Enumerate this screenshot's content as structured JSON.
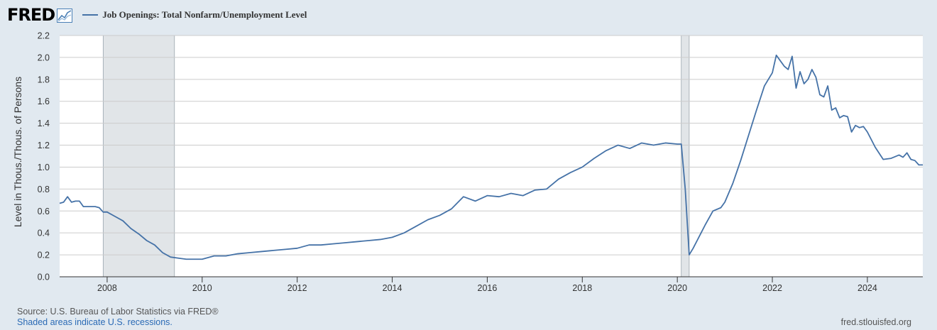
{
  "header": {
    "logo_text": "FRED",
    "series_title": "Job Openings: Total Nonfarm/Unemployment Level"
  },
  "footer": {
    "source": "Source: U.S. Bureau of Labor Statistics via FRED®",
    "recession_note": "Shaded areas indicate U.S. recessions.",
    "site": "fred.stlouisfed.org"
  },
  "chart_data": {
    "type": "line",
    "title": "",
    "xlabel": "",
    "ylabel": "Level in Thous./Thous. of Persons",
    "ylim": [
      0,
      2.2
    ],
    "yticks": [
      "0.0",
      "0.2",
      "0.4",
      "0.6",
      "0.8",
      "1.0",
      "1.2",
      "1.4",
      "1.6",
      "1.8",
      "2.0",
      "2.2"
    ],
    "xlim": [
      "2007-01",
      "2025-03"
    ],
    "xticks": [
      "2008",
      "2010",
      "2012",
      "2014",
      "2016",
      "2018",
      "2020",
      "2022",
      "2024"
    ],
    "grid": true,
    "legend": "top-left",
    "colors": {
      "line": "#4572a7",
      "recession": "#e1e5e8",
      "grid": "#cccccc"
    },
    "recessions": [
      {
        "start": "2007-12",
        "end": "2009-06"
      },
      {
        "start": "2020-02",
        "end": "2020-04"
      }
    ],
    "series": [
      {
        "name": "Job Openings: Total Nonfarm/Unemployment Level",
        "x": [
          "2007-01",
          "2007-02",
          "2007-03",
          "2007-04",
          "2007-05",
          "2007-06",
          "2007-07",
          "2007-08",
          "2007-09",
          "2007-10",
          "2007-11",
          "2007-12",
          "2008-01",
          "2008-03",
          "2008-05",
          "2008-07",
          "2008-09",
          "2008-11",
          "2009-01",
          "2009-03",
          "2009-05",
          "2009-07",
          "2009-09",
          "2009-11",
          "2010-01",
          "2010-04",
          "2010-07",
          "2010-10",
          "2011-01",
          "2011-04",
          "2011-07",
          "2011-10",
          "2012-01",
          "2012-04",
          "2012-07",
          "2012-10",
          "2013-01",
          "2013-04",
          "2013-07",
          "2013-10",
          "2014-01",
          "2014-04",
          "2014-07",
          "2014-10",
          "2015-01",
          "2015-04",
          "2015-07",
          "2015-10",
          "2016-01",
          "2016-04",
          "2016-07",
          "2016-10",
          "2017-01",
          "2017-04",
          "2017-07",
          "2017-10",
          "2018-01",
          "2018-04",
          "2018-07",
          "2018-10",
          "2019-01",
          "2019-04",
          "2019-07",
          "2019-10",
          "2020-01",
          "2020-02",
          "2020-03",
          "2020-04",
          "2020-05",
          "2020-06",
          "2020-07",
          "2020-08",
          "2020-10",
          "2020-12",
          "2021-01",
          "2021-03",
          "2021-05",
          "2021-07",
          "2021-09",
          "2021-11",
          "2022-01",
          "2022-02",
          "2022-03",
          "2022-04",
          "2022-05",
          "2022-06",
          "2022-07",
          "2022-08",
          "2022-09",
          "2022-10",
          "2022-11",
          "2022-12",
          "2023-01",
          "2023-02",
          "2023-03",
          "2023-04",
          "2023-05",
          "2023-06",
          "2023-07",
          "2023-08",
          "2023-09",
          "2023-10",
          "2023-11",
          "2023-12",
          "2024-01",
          "2024-03",
          "2024-05",
          "2024-07",
          "2024-09",
          "2024-10",
          "2024-11",
          "2024-12",
          "2025-01",
          "2025-02",
          "2025-03"
        ],
        "values": [
          0.67,
          0.68,
          0.73,
          0.68,
          0.69,
          0.69,
          0.64,
          0.64,
          0.64,
          0.64,
          0.63,
          0.59,
          0.59,
          0.55,
          0.51,
          0.44,
          0.39,
          0.33,
          0.29,
          0.22,
          0.18,
          0.17,
          0.16,
          0.16,
          0.16,
          0.19,
          0.19,
          0.21,
          0.22,
          0.23,
          0.24,
          0.25,
          0.26,
          0.29,
          0.29,
          0.3,
          0.31,
          0.32,
          0.33,
          0.34,
          0.36,
          0.4,
          0.46,
          0.52,
          0.56,
          0.62,
          0.73,
          0.69,
          0.74,
          0.73,
          0.76,
          0.74,
          0.79,
          0.8,
          0.89,
          0.95,
          1.0,
          1.08,
          1.15,
          1.2,
          1.17,
          1.22,
          1.2,
          1.22,
          1.21,
          1.21,
          0.8,
          0.2,
          0.26,
          0.33,
          0.4,
          0.47,
          0.6,
          0.63,
          0.68,
          0.85,
          1.06,
          1.29,
          1.52,
          1.74,
          1.86,
          2.02,
          1.97,
          1.92,
          1.89,
          2.01,
          1.72,
          1.87,
          1.76,
          1.8,
          1.89,
          1.82,
          1.66,
          1.64,
          1.74,
          1.52,
          1.54,
          1.45,
          1.47,
          1.46,
          1.32,
          1.38,
          1.36,
          1.37,
          1.32,
          1.18,
          1.07,
          1.08,
          1.11,
          1.09,
          1.13,
          1.07,
          1.06,
          1.02,
          1.02
        ]
      }
    ]
  }
}
